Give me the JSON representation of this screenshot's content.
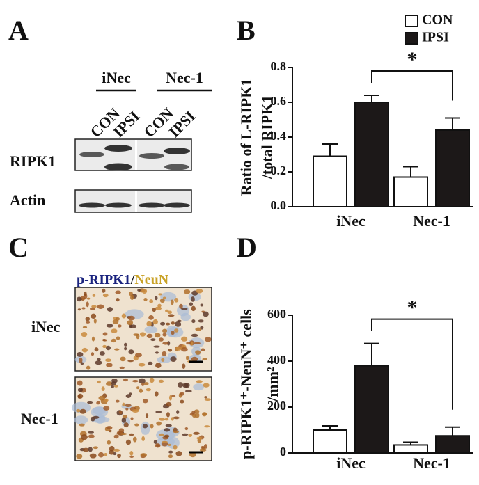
{
  "panels": {
    "a": "A",
    "b": "B",
    "c": "C",
    "d": "D"
  },
  "legend": [
    {
      "name": "CON",
      "color": "#ffffff"
    },
    {
      "name": "IPSI",
      "color": "#1c1818"
    }
  ],
  "blot": {
    "groups": [
      "iNec",
      "Nec-1"
    ],
    "lanes": [
      "CON",
      "IPSI",
      "CON",
      "IPSI"
    ],
    "rows": [
      "RIPK1",
      "Actin"
    ]
  },
  "ihc": {
    "marker": "p-RIPK1",
    "separator": "/",
    "counterstain": "NeuN",
    "rows": [
      "iNec",
      "Nec-1"
    ]
  },
  "chart_data": [
    {
      "type": "bar",
      "ylabel": [
        "Ratio of L-RIPK1",
        "/total RIPK1"
      ],
      "categories": [
        "iNec",
        "Nec-1"
      ],
      "series": [
        {
          "color": "#ffffff",
          "values": [
            0.29,
            0.17
          ],
          "errors": [
            0.07,
            0.06
          ]
        },
        {
          "color": "#1c1818",
          "values": [
            0.6,
            0.44
          ],
          "errors": [
            0.04,
            0.07
          ]
        }
      ],
      "ylim": [
        0,
        0.8
      ],
      "yticks": [
        {
          "value": 0,
          "label": "0.0"
        },
        0.2,
        0.4,
        0.6,
        0.8
      ],
      "annotation": "*"
    },
    {
      "type": "bar",
      "ylabel": [
        "p-RIPK1⁺-NeuN⁺ cells",
        "/mm²"
      ],
      "categories": [
        "iNec",
        "Nec-1"
      ],
      "series": [
        {
          "color": "#ffffff",
          "values": [
            100,
            35
          ],
          "errors": [
            18,
            12
          ]
        },
        {
          "color": "#1c1818",
          "values": [
            380,
            75
          ],
          "errors": [
            97,
            38
          ]
        }
      ],
      "ylim": [
        0,
        600
      ],
      "yticks": [
        0,
        200,
        400,
        600
      ],
      "annotation": "*"
    }
  ]
}
